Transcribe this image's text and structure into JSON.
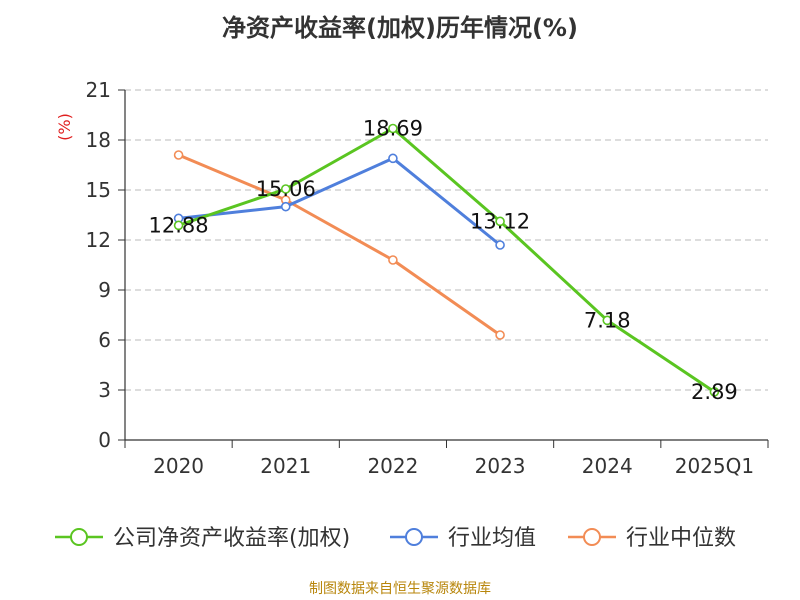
{
  "chart_data": {
    "type": "line",
    "title": "净资产收益率(加权)历年情况(%)",
    "ylabel": "(%)",
    "xlabel": "",
    "categories": [
      "2020",
      "2021",
      "2022",
      "2023",
      "2024",
      "2025Q1"
    ],
    "ylim": [
      0,
      21
    ],
    "yticks": [
      0,
      3,
      6,
      9,
      12,
      15,
      18,
      21
    ],
    "grid": true,
    "legend_position": "bottom",
    "series": [
      {
        "name": "公司净资产收益率(加权)",
        "color": "#5ac521",
        "values": [
          12.88,
          15.06,
          18.69,
          13.12,
          7.18,
          2.89
        ],
        "labels": [
          "12.88",
          "15.06",
          "18.69",
          "13.12",
          "7.18",
          "2.89"
        ]
      },
      {
        "name": "行业均值",
        "color": "#4f7fdc",
        "values": [
          13.3,
          14.0,
          16.9,
          11.7,
          null,
          null
        ]
      },
      {
        "name": "行业中位数",
        "color": "#f28c55",
        "values": [
          17.1,
          14.4,
          10.8,
          6.3,
          null,
          null
        ]
      }
    ]
  },
  "footer": {
    "source": "制图数据来自恒生聚源数据库"
  }
}
